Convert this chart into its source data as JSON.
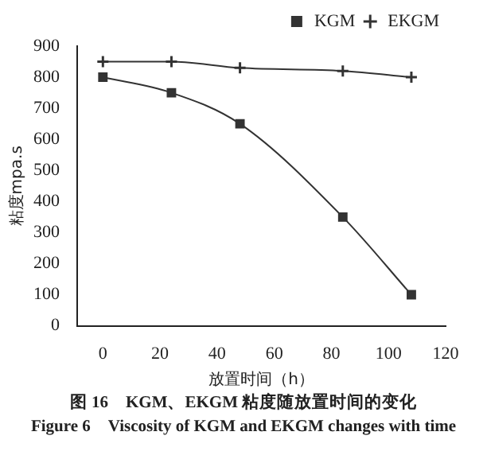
{
  "chart_data": {
    "type": "line",
    "xlabel": "放置时间（h）",
    "ylabel": "粘度mpa.s",
    "x": [
      0,
      24,
      48,
      84,
      108
    ],
    "series": [
      {
        "name": "KGM",
        "color": "#333333",
        "marker": "square",
        "values": [
          800,
          750,
          650,
          350,
          100
        ]
      },
      {
        "name": "EKGM",
        "color": "#333333",
        "marker": "cross",
        "values": [
          850,
          850,
          830,
          820,
          800
        ]
      }
    ],
    "xlim": [
      -9,
      120
    ],
    "xticks": [
      0,
      20,
      40,
      60,
      80,
      100,
      120
    ],
    "ylim": [
      0,
      900
    ],
    "yticks": [
      0,
      100,
      200,
      300,
      400,
      500,
      600,
      700,
      800,
      900
    ],
    "grid": false,
    "legend": "top right",
    "annotations": [
      "图 16　KGM、EKGM 粘度随放置时间的变化",
      "Figure 6　Viscosity of KGM and EKGM changes with time"
    ]
  }
}
